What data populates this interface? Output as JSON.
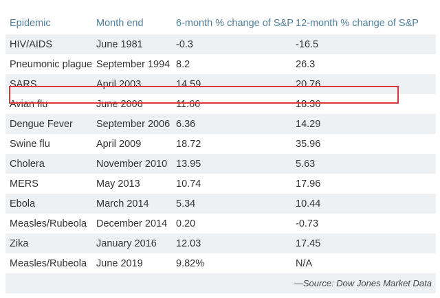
{
  "headers": [
    "Epidemic",
    "Month end",
    "6-month % change of S&P",
    "12-month % change of S&P"
  ],
  "rows": [
    [
      "HIV/AIDS",
      "June 1981",
      "-0.3",
      "-16.5"
    ],
    [
      "Pneumonic plague",
      "September 1994",
      "8.2",
      "26.3"
    ],
    [
      "SARS",
      "April 2003",
      "14.59",
      "20.76"
    ],
    [
      "Avian flu",
      "June 2006",
      "11.66",
      "18.36"
    ],
    [
      "Dengue Fever",
      "September 2006",
      "6.36",
      "14.29"
    ],
    [
      "Swine flu",
      "April 2009",
      "18.72",
      "35.96"
    ],
    [
      "Cholera",
      "November 2010",
      "13.95",
      "5.63"
    ],
    [
      "MERS",
      "May 2013",
      "10.74",
      "17.96"
    ],
    [
      "Ebola",
      "March 2014",
      "5.34",
      "10.44"
    ],
    [
      "Measles/Rubeola",
      "December 2014",
      "0.20",
      "-0.73"
    ],
    [
      "Zika",
      "January 2016",
      "12.03",
      "17.45"
    ],
    [
      "Measles/Rubeola",
      "June 2019",
      "9.82%",
      "N/A"
    ]
  ],
  "highlighted_row": "SARS",
  "source": "—Source: Dow Jones Market Data",
  "colors": {
    "header_text": "#4f7f9a",
    "stripe": "#edf1f4",
    "highlight_border": "#d9363e"
  }
}
